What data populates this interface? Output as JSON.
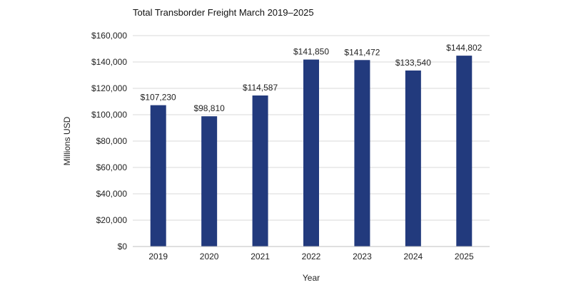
{
  "chart_data": {
    "type": "bar",
    "title": "Total Transborder Freight March 2019–2025",
    "xlabel": "Year",
    "ylabel": "Millions USD",
    "categories": [
      "2019",
      "2020",
      "2021",
      "2022",
      "2023",
      "2024",
      "2025"
    ],
    "values": [
      107230,
      98810,
      114587,
      141850,
      141472,
      133540,
      144802
    ],
    "value_labels": [
      "$107,230",
      "$98,810",
      "$114,587",
      "$141,850",
      "$141,472",
      "$133,540",
      "$144,802"
    ],
    "ylim": [
      0,
      160000
    ],
    "yticks": [
      0,
      20000,
      40000,
      60000,
      80000,
      100000,
      120000,
      140000,
      160000
    ],
    "ytick_labels": [
      "$0",
      "$20,000",
      "$40,000",
      "$60,000",
      "$80,000",
      "$100,000",
      "$120,000",
      "$140,000",
      "$160,000"
    ],
    "grid": true,
    "bar_color": "#223a7d",
    "grid_color": "#d9d9d9"
  }
}
